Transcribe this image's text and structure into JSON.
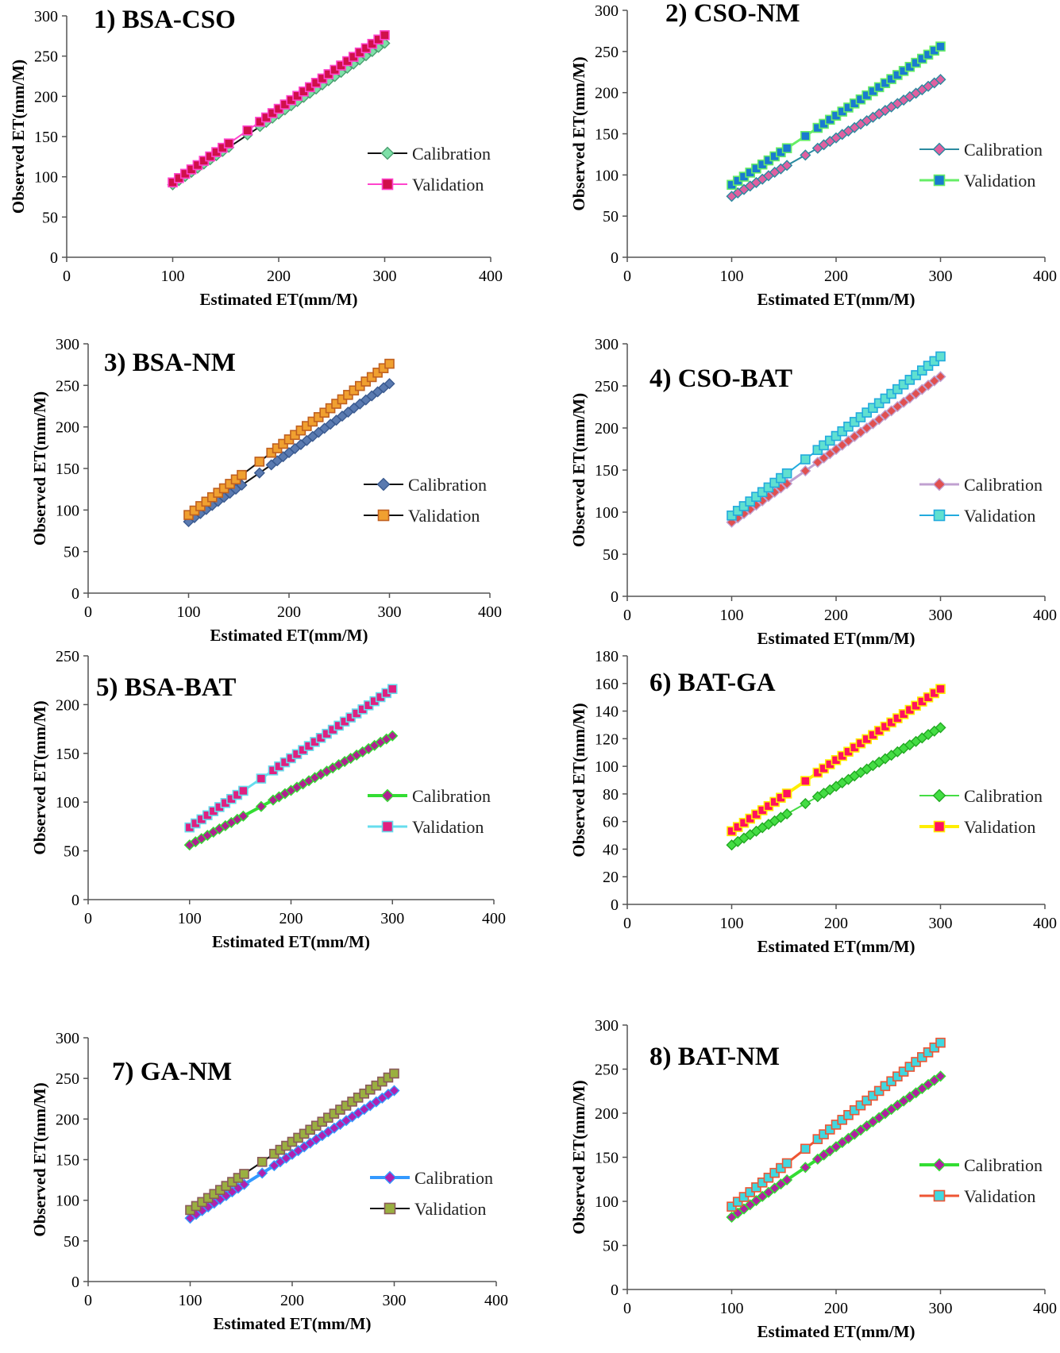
{
  "chart_data": [
    {
      "type": "line",
      "title": "1) BSA-CSO",
      "xlabel": "Estimated ET(mm/M)",
      "ylabel": "Observed ET(mm/M)",
      "xlim": [
        0,
        400
      ],
      "ylim": [
        0,
        300
      ],
      "xticks": [
        "0",
        "100",
        "200",
        "300",
        "400"
      ],
      "yticks": [
        "0",
        "50",
        "100",
        "150",
        "200",
        "250",
        "300"
      ],
      "series": [
        {
          "name": "Calibration",
          "x": [
            100,
            300
          ],
          "y": [
            90,
            266
          ],
          "line": "#111111",
          "lw": 2,
          "marker": "diamond",
          "fill": "#7ee0a8",
          "stroke": "#4aa070"
        },
        {
          "name": "Validation",
          "x": [
            100,
            300
          ],
          "y": [
            93,
            276
          ],
          "line": "#ff44cc",
          "lw": 2,
          "marker": "square",
          "fill": "#d0104a",
          "stroke": "#ff44cc"
        }
      ]
    },
    {
      "type": "line",
      "title": "2) CSO-NM",
      "xlabel": "Estimated ET(mm/M)",
      "ylabel": "Observed ET(mm/M)",
      "xlim": [
        0,
        400
      ],
      "ylim": [
        0,
        300
      ],
      "xticks": [
        "0",
        "100",
        "200",
        "300",
        "400"
      ],
      "yticks": [
        "0",
        "50",
        "100",
        "150",
        "200",
        "250",
        "300"
      ],
      "series": [
        {
          "name": "Calibration",
          "x": [
            100,
            300
          ],
          "y": [
            74,
            216
          ],
          "line": "#2a8aa0",
          "lw": 2,
          "marker": "diamond",
          "fill": "#e060a0",
          "stroke": "#2a8aa0"
        },
        {
          "name": "Validation",
          "x": [
            100,
            300
          ],
          "y": [
            88,
            256
          ],
          "line": "#66ee66",
          "lw": 3,
          "marker": "square",
          "fill": "#1a7ad0",
          "stroke": "#66ee66"
        }
      ]
    },
    {
      "type": "line",
      "title": "3) BSA-NM",
      "xlabel": "Estimated ET(mm/M)",
      "ylabel": "Observed ET(mm/M)",
      "xlim": [
        0,
        400
      ],
      "ylim": [
        0,
        300
      ],
      "xticks": [
        "0",
        "100",
        "200",
        "300",
        "400"
      ],
      "yticks": [
        "0",
        "50",
        "100",
        "150",
        "200",
        "250",
        "300"
      ],
      "series": [
        {
          "name": "Calibration",
          "x": [
            100,
            300
          ],
          "y": [
            86,
            252
          ],
          "line": "#111111",
          "lw": 2,
          "marker": "diamond",
          "fill": "#5a7ab0",
          "stroke": "#3a5a90"
        },
        {
          "name": "Validation",
          "x": [
            100,
            300
          ],
          "y": [
            94,
            276
          ],
          "line": "#111111",
          "lw": 2,
          "marker": "square",
          "fill": "#f0a030",
          "stroke": "#c06020"
        }
      ]
    },
    {
      "type": "line",
      "title": "4) CSO-BAT",
      "xlabel": "Estimated ET(mm/M)",
      "ylabel": "Observed ET(mm/M)",
      "xlim": [
        0,
        400
      ],
      "ylim": [
        0,
        300
      ],
      "xticks": [
        "0",
        "100",
        "200",
        "300",
        "400"
      ],
      "yticks": [
        "0",
        "50",
        "100",
        "150",
        "200",
        "250",
        "300"
      ],
      "series": [
        {
          "name": "Calibration",
          "x": [
            100,
            300
          ],
          "y": [
            88,
            261
          ],
          "line": "#c0a0d0",
          "lw": 3,
          "marker": "diamond",
          "fill": "#e05050",
          "stroke": "#c0a0d0"
        },
        {
          "name": "Validation",
          "x": [
            100,
            300
          ],
          "y": [
            96,
            285
          ],
          "line": "#22aadd",
          "lw": 2,
          "marker": "square",
          "fill": "#60e0d0",
          "stroke": "#22aadd"
        }
      ]
    },
    {
      "type": "line",
      "title": "5) BSA-BAT",
      "xlabel": "Estimated ET(mm/M)",
      "ylabel": "Observed ET(mm/M)",
      "xlim": [
        0,
        400
      ],
      "ylim": [
        0,
        250
      ],
      "xticks": [
        "0",
        "100",
        "200",
        "300",
        "400"
      ],
      "yticks": [
        "0",
        "50",
        "100",
        "150",
        "200",
        "250"
      ],
      "series": [
        {
          "name": "Calibration",
          "x": [
            100,
            300
          ],
          "y": [
            56,
            168
          ],
          "line": "#33dd33",
          "lw": 4,
          "marker": "diamond",
          "fill": "#b02090",
          "stroke": "#33dd33"
        },
        {
          "name": "Validation",
          "x": [
            100,
            300
          ],
          "y": [
            74,
            216
          ],
          "line": "#66ddee",
          "lw": 3,
          "marker": "square",
          "fill": "#e02080",
          "stroke": "#66ddee"
        }
      ]
    },
    {
      "type": "line",
      "title": "6) BAT-GA",
      "xlabel": "Estimated ET(mm/M)",
      "ylabel": "Observed ET(mm/M)",
      "xlim": [
        0,
        400
      ],
      "ylim": [
        0,
        180
      ],
      "xticks": [
        "0",
        "100",
        "200",
        "300",
        "400"
      ],
      "yticks": [
        "0",
        "20",
        "40",
        "60",
        "80",
        "100",
        "120",
        "140",
        "160",
        "180"
      ],
      "series": [
        {
          "name": "Calibration",
          "x": [
            100,
            300
          ],
          "y": [
            43,
            128
          ],
          "line": "#44dd44",
          "lw": 2,
          "marker": "diamond",
          "fill": "#44dd44",
          "stroke": "#22aa22"
        },
        {
          "name": "Validation",
          "x": [
            100,
            300
          ],
          "y": [
            53,
            156
          ],
          "line": "#ffee00",
          "lw": 4,
          "marker": "square",
          "fill": "#ff1060",
          "stroke": "#ffee00"
        }
      ]
    },
    {
      "type": "line",
      "title": "7) GA-NM",
      "xlabel": "Estimated ET(mm/M)",
      "ylabel": "Observed ET(mm/M)",
      "xlim": [
        0,
        400
      ],
      "ylim": [
        0,
        300
      ],
      "xticks": [
        "0",
        "100",
        "200",
        "300",
        "400"
      ],
      "yticks": [
        "0",
        "50",
        "100",
        "150",
        "200",
        "250",
        "300"
      ],
      "series": [
        {
          "name": "Calibration",
          "x": [
            100,
            300
          ],
          "y": [
            78,
            235
          ],
          "line": "#3399ff",
          "lw": 4,
          "marker": "diamond",
          "fill": "#b020b0",
          "stroke": "#3399ff"
        },
        {
          "name": "Validation",
          "x": [
            100,
            300
          ],
          "y": [
            88,
            256
          ],
          "line": "#111111",
          "lw": 2,
          "marker": "square",
          "fill": "#9ab040",
          "stroke": "#8a5a5a"
        }
      ]
    },
    {
      "type": "line",
      "title": "8) BAT-NM",
      "xlabel": "Estimated ET(mm/M)",
      "ylabel": "Observed ET(mm/M)",
      "xlim": [
        0,
        400
      ],
      "ylim": [
        0,
        300
      ],
      "xticks": [
        "0",
        "100",
        "200",
        "300",
        "400"
      ],
      "yticks": [
        "0",
        "50",
        "100",
        "150",
        "200",
        "250",
        "300"
      ],
      "series": [
        {
          "name": "Calibration",
          "x": [
            100,
            300
          ],
          "y": [
            82,
            242
          ],
          "line": "#33dd33",
          "lw": 4,
          "marker": "diamond",
          "fill": "#b020a0",
          "stroke": "#33dd33"
        },
        {
          "name": "Validation",
          "x": [
            100,
            300
          ],
          "y": [
            94,
            280
          ],
          "line": "#ee5533",
          "lw": 3,
          "marker": "square",
          "fill": "#40d8e0",
          "stroke": "#ee5533"
        }
      ]
    }
  ]
}
